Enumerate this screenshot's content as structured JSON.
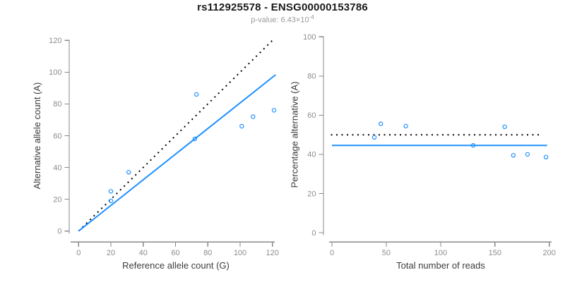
{
  "header": {
    "title": "rs112925578 - ENSG00000153786",
    "p_label_text": "p-value: 6.43×10",
    "p_exponent": "-4"
  },
  "colors": {
    "accent_blue": "#1e90ff",
    "dotted_black": "#000000",
    "axis_line_gray": "#888888",
    "tick_label_gray": "#8c8c8c",
    "axis_title_gray": "#3c3c3c",
    "title_color": "#1a1a1a",
    "subtitle_gray": "#9a9a9a",
    "background": "#ffffff"
  },
  "chart_data": [
    {
      "type": "scatter",
      "panel": "left",
      "xlabel": "Reference allele count (G)",
      "ylabel": "Alternative allele count (A)",
      "xlim": [
        0,
        120
      ],
      "ylim": [
        0,
        120
      ],
      "xticks": [
        0,
        20,
        40,
        60,
        80,
        100,
        120
      ],
      "yticks": [
        0,
        20,
        40,
        60,
        80,
        100,
        120
      ],
      "grid": false,
      "legend": "none",
      "point_style": "open-circle",
      "point_color": "#1e90ff",
      "points": [
        [
          20,
          19
        ],
        [
          20,
          25
        ],
        [
          31,
          37
        ],
        [
          72,
          58
        ],
        [
          73,
          86
        ],
        [
          101,
          66
        ],
        [
          108,
          72
        ],
        [
          121,
          76
        ]
      ],
      "lines": [
        {
          "name": "identity-line",
          "style": "dotted",
          "color": "#000000",
          "from": [
            0,
            0
          ],
          "to": [
            121,
            121
          ]
        },
        {
          "name": "fit-line",
          "style": "solid",
          "color": "#1e90ff",
          "from": [
            0,
            0
          ],
          "to": [
            122,
            98.4
          ]
        }
      ]
    },
    {
      "type": "scatter",
      "panel": "right",
      "xlabel": "Total number of reads",
      "ylabel": "Percentage alternative (A)",
      "xlim": [
        0,
        200
      ],
      "ylim": [
        0,
        100
      ],
      "xticks": [
        0,
        50,
        100,
        150,
        200
      ],
      "yticks": [
        0,
        20,
        40,
        60,
        80,
        100
      ],
      "grid": false,
      "legend": "none",
      "point_style": "open-circle",
      "point_color": "#1e90ff",
      "points": [
        [
          39,
          48.7
        ],
        [
          45,
          55.6
        ],
        [
          68,
          54.4
        ],
        [
          130,
          44.6
        ],
        [
          159,
          54.1
        ],
        [
          167,
          39.5
        ],
        [
          180,
          40.0
        ],
        [
          197,
          38.6
        ]
      ],
      "lines": [
        {
          "name": "fifty-percent-line",
          "style": "dotted",
          "color": "#000000",
          "from": [
            -1,
            50
          ],
          "to": [
            194,
            50
          ]
        },
        {
          "name": "mean-percentage-line",
          "style": "solid",
          "color": "#1e90ff",
          "from": [
            0,
            44.6
          ],
          "to": [
            198,
            44.6
          ]
        }
      ]
    }
  ]
}
